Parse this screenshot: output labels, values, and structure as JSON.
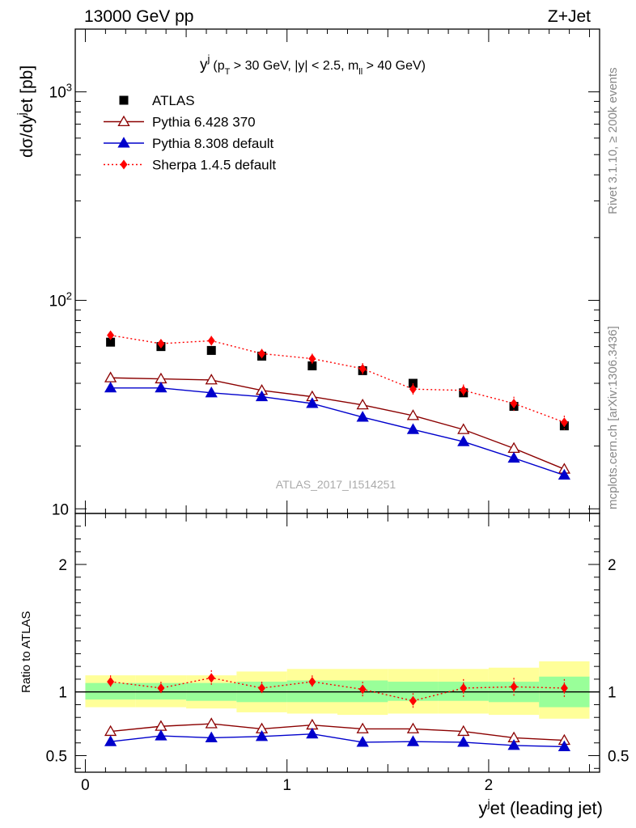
{
  "header": {
    "left": "13000 GeV pp",
    "right": "Z+Jet"
  },
  "side_text": {
    "rivet": "Rivet 3.1.10, ≥ 200k events",
    "mcplots": "mcplots.cern.ch [arXiv:1306.3436]"
  },
  "watermark": "ATLAS_2017_I1514251",
  "observable": {
    "symbol": "y",
    "symbol_sup": "j",
    "p1": "(p",
    "p1_sub": "T",
    "p2": " > 30 GeV, |y| < 2.5, m",
    "p2_sub": "ll",
    "p3": " > 40 GeV)"
  },
  "colors": {
    "atlas": "#000000",
    "pythia6": "#8b0000",
    "pythia8": "#0000cc",
    "sherpa": "#ff0000",
    "band_inner": "#99ff99",
    "band_outer": "#ffff99"
  },
  "chart_data": [
    {
      "type": "scatter",
      "panel": "main",
      "title": "",
      "ylabel": "dσ/dyʲet [pb]",
      "ylabel_parts": [
        "dσ/dy",
        "j",
        "et [pb]"
      ],
      "yscale": "log",
      "ylim": [
        9.5,
        2000
      ],
      "xlim": [
        -0.05,
        2.55
      ],
      "y_tick_labels": [
        "10",
        "10",
        "10"
      ],
      "y_tick_exponents": [
        "",
        "2",
        "3"
      ],
      "y_tick_values": [
        10,
        100,
        1000
      ],
      "x": [
        0.125,
        0.375,
        0.625,
        0.875,
        1.125,
        1.375,
        1.625,
        1.875,
        2.125,
        2.375
      ],
      "legend_position": "top-left",
      "series": [
        {
          "name": "ATLAS",
          "marker": "square",
          "values": [
            63,
            60,
            57.5,
            54,
            48.5,
            46,
            40,
            36,
            31,
            25
          ]
        },
        {
          "name": "Pythia 6.428 370",
          "marker": "open-triangle",
          "values": [
            42.5,
            42,
            41.5,
            37,
            34.5,
            31.5,
            28,
            24,
            19.5,
            15.5
          ]
        },
        {
          "name": "Pythia 8.308 default",
          "marker": "triangle",
          "values": [
            38,
            38,
            36,
            34.5,
            32,
            27.5,
            24,
            21,
            17.5,
            14.5
          ]
        },
        {
          "name": "Sherpa 1.4.5 default",
          "marker": "diamond",
          "dotted": true,
          "values": [
            68,
            62,
            64,
            55.5,
            52.5,
            47,
            37.5,
            37,
            32,
            26
          ],
          "errors": [
            3,
            3,
            3.5,
            3,
            3,
            3,
            2.5,
            2.5,
            2.5,
            2
          ]
        }
      ]
    },
    {
      "type": "line",
      "panel": "ratio",
      "ylabel": "Ratio to ATLAS",
      "ylim": [
        0.37,
        2.4
      ],
      "y_tick_labels": [
        "0.5",
        "1",
        "2"
      ],
      "y_tick_values": [
        0.5,
        1,
        2
      ],
      "xlabel_parts": [
        "y",
        "j",
        "et (leading jet)"
      ],
      "x_tick_labels": [
        "0",
        "1",
        "2"
      ],
      "x_tick_values": [
        0,
        1,
        2
      ],
      "x": [
        0.125,
        0.375,
        0.625,
        0.875,
        1.125,
        1.375,
        1.625,
        1.875,
        2.125,
        2.375
      ],
      "bin_edges": [
        0,
        0.25,
        0.5,
        0.75,
        1.0,
        1.25,
        1.5,
        1.75,
        2.0,
        2.25,
        2.5
      ],
      "band_inner": [
        [
          0.94,
          1.07
        ],
        [
          0.94,
          1.07
        ],
        [
          0.93,
          1.07
        ],
        [
          0.92,
          1.08
        ],
        [
          0.92,
          1.09
        ],
        [
          0.92,
          1.09
        ],
        [
          0.93,
          1.08
        ],
        [
          0.93,
          1.08
        ],
        [
          0.92,
          1.08
        ],
        [
          0.88,
          1.12
        ]
      ],
      "band_outer": [
        [
          0.88,
          1.13
        ],
        [
          0.88,
          1.13
        ],
        [
          0.87,
          1.13
        ],
        [
          0.84,
          1.16
        ],
        [
          0.83,
          1.18
        ],
        [
          0.82,
          1.18
        ],
        [
          0.83,
          1.18
        ],
        [
          0.83,
          1.18
        ],
        [
          0.82,
          1.19
        ],
        [
          0.79,
          1.24
        ]
      ],
      "series": [
        {
          "name": "Pythia 6.428 370",
          "values": [
            0.69,
            0.73,
            0.75,
            0.71,
            0.74,
            0.71,
            0.71,
            0.69,
            0.64,
            0.62
          ]
        },
        {
          "name": "Pythia 8.308 default",
          "values": [
            0.61,
            0.655,
            0.64,
            0.65,
            0.67,
            0.605,
            0.61,
            0.605,
            0.58,
            0.57
          ]
        },
        {
          "name": "Sherpa 1.4.5 default",
          "values": [
            1.08,
            1.03,
            1.11,
            1.03,
            1.08,
            1.02,
            0.93,
            1.03,
            1.04,
            1.03
          ],
          "errors": [
            0.05,
            0.05,
            0.06,
            0.05,
            0.05,
            0.06,
            0.06,
            0.07,
            0.07,
            0.07
          ]
        }
      ]
    }
  ]
}
